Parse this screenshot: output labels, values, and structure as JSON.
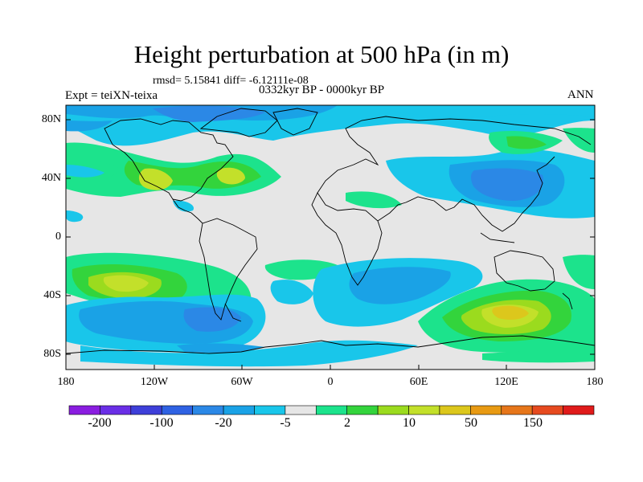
{
  "title": "Height perturbation at 500 hPa (in m)",
  "stats": "rmsd= 5.15841 diff= -6.12111e-08",
  "period": "0332kyr BP - 0000kyr BP",
  "experiment": "Expt = teiXN-teixa",
  "season": "ANN",
  "map": {
    "lat_ticks": [
      "80N",
      "40N",
      "0",
      "40S",
      "80S"
    ],
    "lon_ticks": [
      "180",
      "120W",
      "60W",
      "0",
      "60E",
      "120E",
      "180"
    ]
  },
  "colorbar": {
    "labels": [
      "-200",
      "-100",
      "-20",
      "-5",
      "2",
      "10",
      "50",
      "150"
    ],
    "colors": [
      "#8a1de0",
      "#6a2ee6",
      "#3e3fd9",
      "#2f62e3",
      "#2b88e6",
      "#1aa2e6",
      "#19c6ea",
      "#e6e6e6",
      "#1ce38c",
      "#33d43c",
      "#9bdb1e",
      "#c3e02a",
      "#dcc71c",
      "#e89a13",
      "#e6761a",
      "#e64a1f",
      "#e01b1b"
    ]
  }
}
